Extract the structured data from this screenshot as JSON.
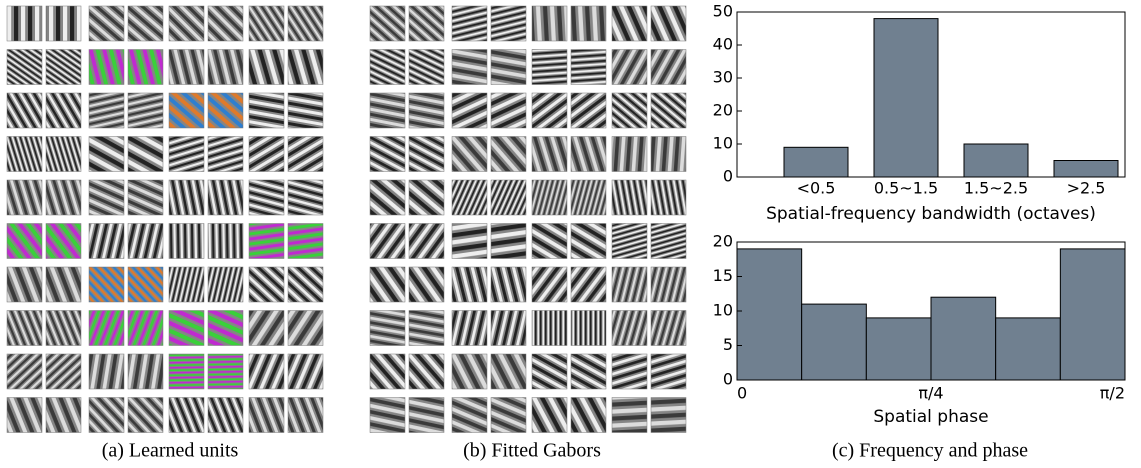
{
  "chart_data": [
    {
      "type": "bar",
      "xlabel": "Spatial-frequency bandwidth (octaves)",
      "categories": [
        "<0.5",
        "0.5~1.5",
        "1.5~2.5",
        ">2.5"
      ],
      "values": [
        9,
        48,
        10,
        5
      ],
      "color": "#708090",
      "ylim": [
        0,
        50
      ],
      "yticks": [
        0,
        10,
        20,
        30,
        40,
        50
      ]
    },
    {
      "type": "histogram",
      "xlabel": "Spatial phase",
      "bins": [
        0,
        0.2618,
        0.5236,
        0.7854,
        1.0472,
        1.309,
        1.5708
      ],
      "values": [
        19,
        11,
        9,
        12,
        9,
        19
      ],
      "color": "#708090",
      "xlim": [
        0,
        1.5708
      ],
      "xticks": [
        0,
        {
          "value": 0.7854,
          "label": "π/4"
        },
        {
          "value": 1.5708,
          "label": "π/2"
        }
      ],
      "ylim": [
        0,
        20
      ],
      "yticks": [
        0,
        5,
        10,
        15,
        20
      ]
    }
  ],
  "captions": [
    "(a) Learned units",
    "(b) Fitted Gabors",
    "(c) Frequency and phase"
  ]
}
